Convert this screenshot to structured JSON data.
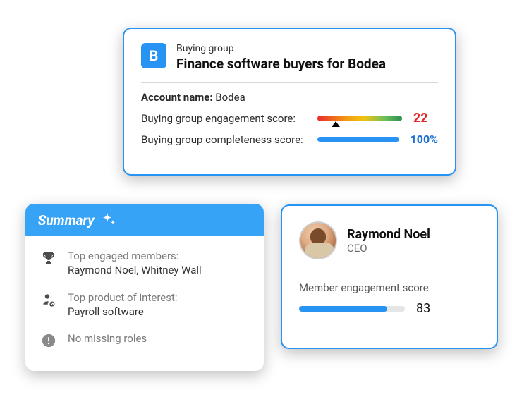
{
  "buyingGroup": {
    "badgeLetter": "B",
    "eyebrow": "Buying group",
    "title": "Finance software buyers for Bodea",
    "accountNameLabel": "Account name:",
    "accountNameValue": "Bodea",
    "engagementLabel": "Buying group engagement score:",
    "engagementScore": "22",
    "engagementPercent": 22,
    "completenessLabel": "Buying group completeness score:",
    "completenessScore": "100%",
    "colors": {
      "badgeBg": "#2793f2",
      "scoreRed": "#e02a2a",
      "scoreBlue": "#1b6fd3",
      "gradient": [
        "#e82c2c",
        "#f39c12",
        "#f1c40f",
        "#6bbf59",
        "#2a8f4f"
      ],
      "blueBar": "#2793f2",
      "cardBorder": "#2793f2"
    }
  },
  "summary": {
    "headerLabel": "Summary",
    "headerBg": "#36a3f7",
    "items": [
      {
        "icon": "trophy",
        "heading": "Top engaged members:",
        "value": "Raymond Noel, Whitney Wall"
      },
      {
        "icon": "person-link",
        "heading": "Top product of interest:",
        "value": "Payroll software"
      },
      {
        "icon": "info-solid",
        "heading": "No missing roles",
        "value": ""
      }
    ]
  },
  "person": {
    "name": "Raymond Noel",
    "role": "CEO",
    "mesLabel": "Member engagement score",
    "mesScore": "83",
    "mesPercent": 83,
    "barFill": "#2793f2",
    "barTrack": "#e6e6e6",
    "cardBorder": "#2793f2"
  }
}
